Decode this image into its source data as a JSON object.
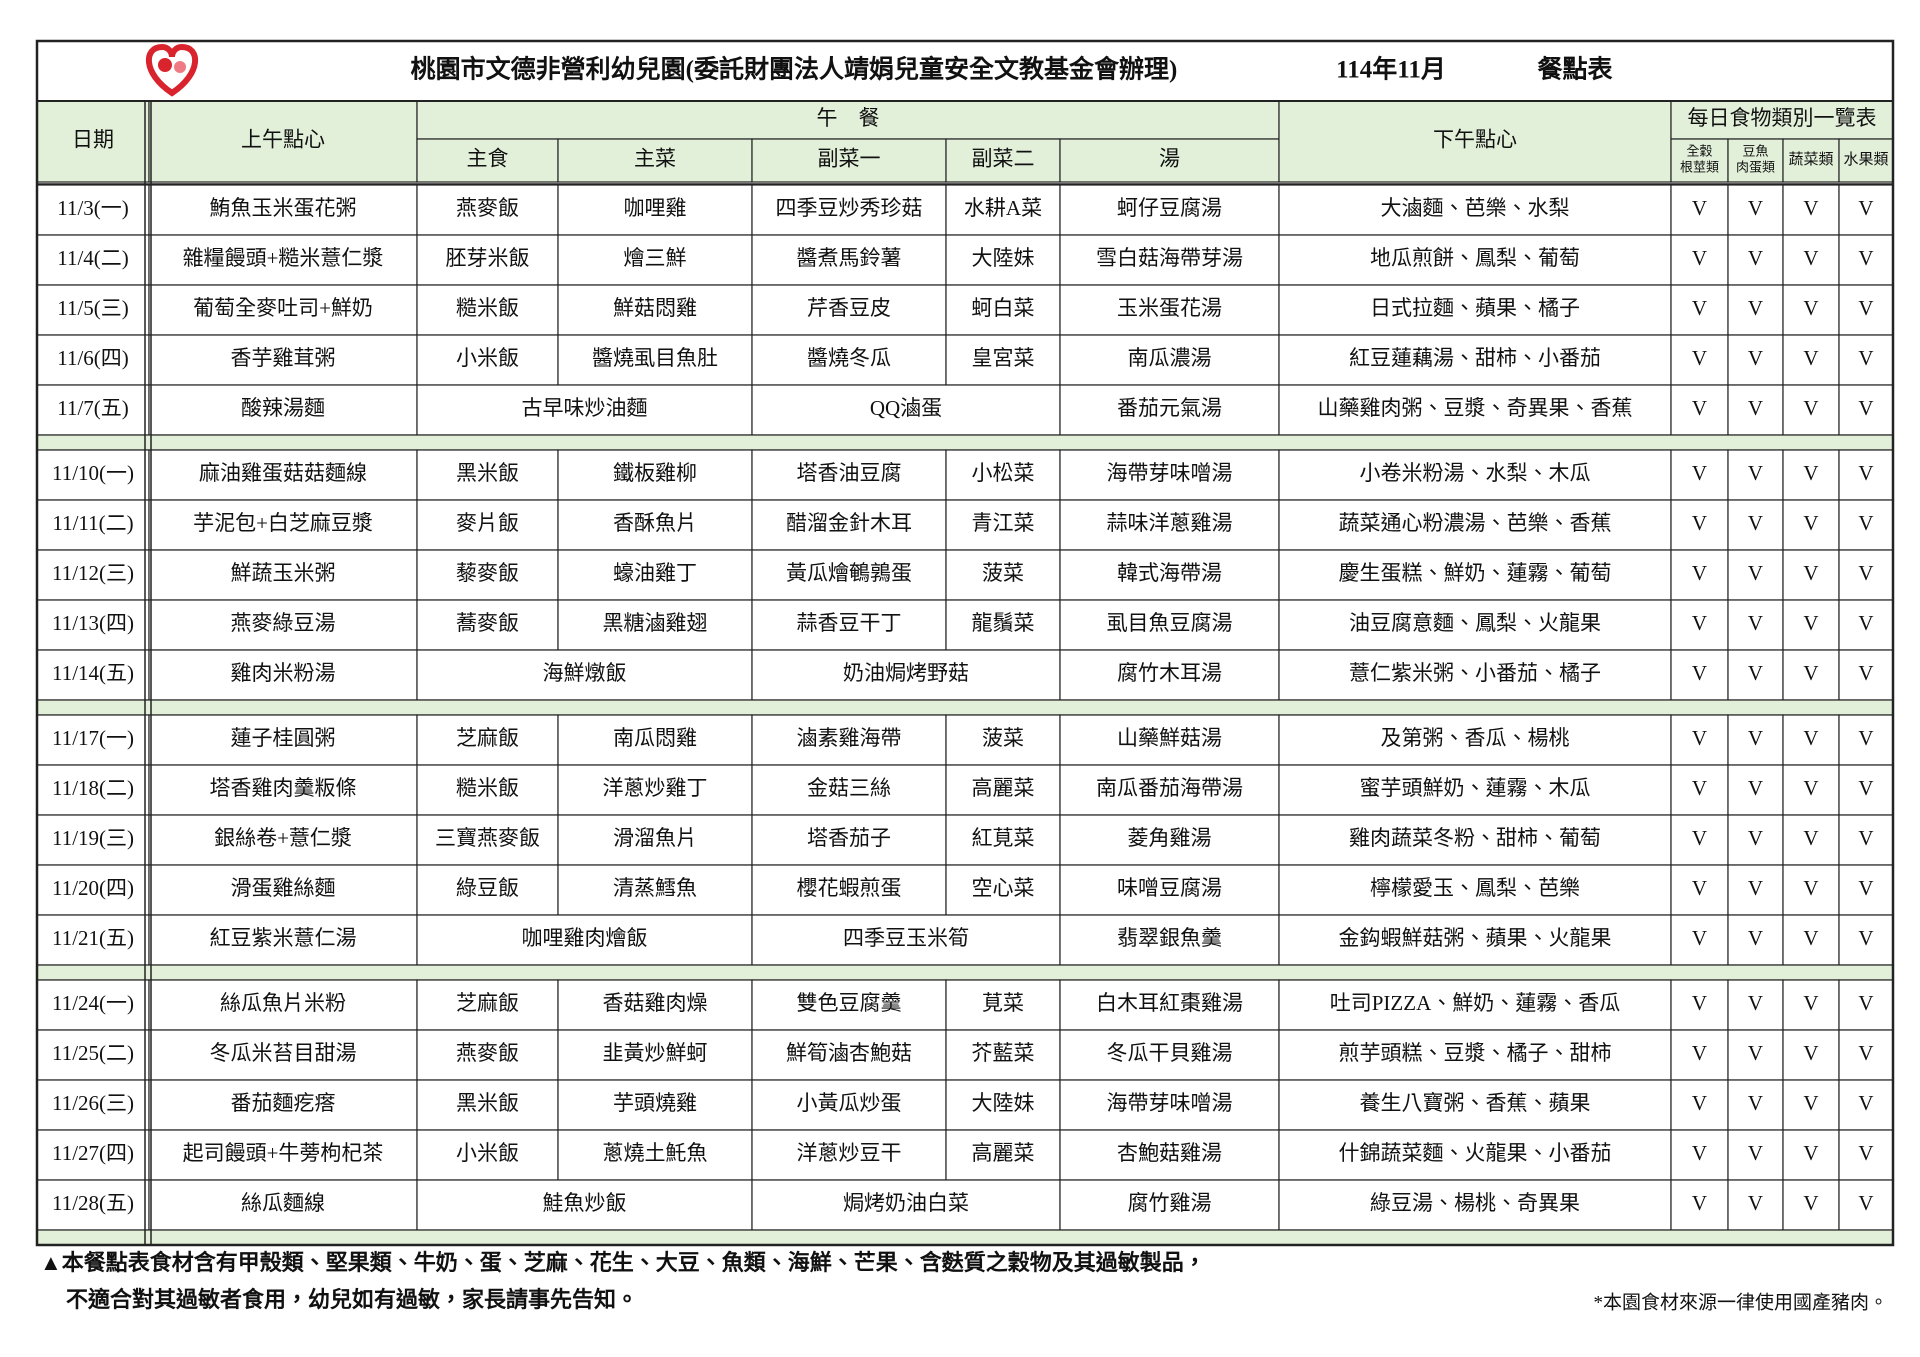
{
  "header": {
    "title": "桃園市文德非營利幼兒園(委託財團法人靖娟兒童安全文教基金會辦理)",
    "month": "114年11月",
    "label": "餐點表"
  },
  "table": {
    "columns": {
      "date": "日期",
      "am": "上午點心",
      "lunch": "午　餐",
      "lunch_sub": [
        "主食",
        "主菜",
        "副菜一",
        "副菜二",
        "湯"
      ],
      "pm": "下午點心",
      "categories_title": "每日食物類別一覽表",
      "categories": [
        [
          "全穀",
          "根莖類"
        ],
        [
          "豆魚",
          "肉蛋類"
        ],
        [
          "蔬菜類"
        ],
        [
          "水果類"
        ]
      ]
    },
    "weeks": [
      [
        {
          "date": "11/3(一)",
          "am": "鮪魚玉米蛋花粥",
          "lunch": [
            "燕麥飯",
            "咖哩雞",
            "四季豆炒秀珍菇",
            "水耕A菜",
            "蚵仔豆腐湯"
          ],
          "pm": "大滷麵、芭樂、水梨",
          "checks": [
            "V",
            "V",
            "V",
            "V"
          ]
        },
        {
          "date": "11/4(二)",
          "am": "雜糧饅頭+糙米薏仁漿",
          "lunch": [
            "胚芽米飯",
            "燴三鮮",
            "醬煮馬鈴薯",
            "大陸妹",
            "雪白菇海帶芽湯"
          ],
          "pm": "地瓜煎餅、鳳梨、葡萄",
          "checks": [
            "V",
            "V",
            "V",
            "V"
          ]
        },
        {
          "date": "11/5(三)",
          "am": "葡萄全麥吐司+鮮奶",
          "lunch": [
            "糙米飯",
            "鮮菇悶雞",
            "芹香豆皮",
            "蚵白菜",
            "玉米蛋花湯"
          ],
          "pm": "日式拉麵、蘋果、橘子",
          "checks": [
            "V",
            "V",
            "V",
            "V"
          ]
        },
        {
          "date": "11/6(四)",
          "am": "香芋雞茸粥",
          "lunch": [
            "小米飯",
            "醬燒虱目魚肚",
            "醬燒冬瓜",
            "皇宮菜",
            "南瓜濃湯"
          ],
          "pm": "紅豆蓮藕湯、甜柿、小番茄",
          "checks": [
            "V",
            "V",
            "V",
            "V"
          ]
        },
        {
          "date": "11/7(五)",
          "am": "酸辣湯麵",
          "lunch": [
            "古早味炒油麵",
            "QQ滷蛋",
            "番茄元氣湯"
          ],
          "pm": "山藥雞肉粥、豆漿、奇異果、香蕉",
          "checks": [
            "V",
            "V",
            "V",
            "V"
          ]
        }
      ],
      [
        {
          "date": "11/10(一)",
          "am": "麻油雞蛋菇菇麵線",
          "lunch": [
            "黑米飯",
            "鐵板雞柳",
            "塔香油豆腐",
            "小松菜",
            "海帶芽味噌湯"
          ],
          "pm": "小卷米粉湯、水梨、木瓜",
          "checks": [
            "V",
            "V",
            "V",
            "V"
          ]
        },
        {
          "date": "11/11(二)",
          "am": "芋泥包+白芝麻豆漿",
          "lunch": [
            "麥片飯",
            "香酥魚片",
            "醋溜金針木耳",
            "青江菜",
            "蒜味洋蔥雞湯"
          ],
          "pm": "蔬菜通心粉濃湯、芭樂、香蕉",
          "checks": [
            "V",
            "V",
            "V",
            "V"
          ]
        },
        {
          "date": "11/12(三)",
          "am": "鮮蔬玉米粥",
          "lunch": [
            "藜麥飯",
            "蠔油雞丁",
            "黃瓜燴鵪鶉蛋",
            "菠菜",
            "韓式海帶湯"
          ],
          "pm": "慶生蛋糕、鮮奶、蓮霧、葡萄",
          "checks": [
            "V",
            "V",
            "V",
            "V"
          ]
        },
        {
          "date": "11/13(四)",
          "am": "燕麥綠豆湯",
          "lunch": [
            "蕎麥飯",
            "黑糖滷雞翅",
            "蒜香豆干丁",
            "龍鬚菜",
            "虱目魚豆腐湯"
          ],
          "pm": "油豆腐意麵、鳳梨、火龍果",
          "checks": [
            "V",
            "V",
            "V",
            "V"
          ]
        },
        {
          "date": "11/14(五)",
          "am": "雞肉米粉湯",
          "lunch": [
            "海鮮燉飯",
            "奶油焗烤野菇",
            "腐竹木耳湯"
          ],
          "pm": "薏仁紫米粥、小番茄、橘子",
          "checks": [
            "V",
            "V",
            "V",
            "V"
          ]
        }
      ],
      [
        {
          "date": "11/17(一)",
          "am": "蓮子桂圓粥",
          "lunch": [
            "芝麻飯",
            "南瓜悶雞",
            "滷素雞海帶",
            "菠菜",
            "山藥鮮菇湯"
          ],
          "pm": "及第粥、香瓜、楊桃",
          "checks": [
            "V",
            "V",
            "V",
            "V"
          ]
        },
        {
          "date": "11/18(二)",
          "am": "塔香雞肉羹粄條",
          "lunch": [
            "糙米飯",
            "洋蔥炒雞丁",
            "金菇三絲",
            "高麗菜",
            "南瓜番茄海帶湯"
          ],
          "pm": "蜜芋頭鮮奶、蓮霧、木瓜",
          "checks": [
            "V",
            "V",
            "V",
            "V"
          ]
        },
        {
          "date": "11/19(三)",
          "am": "銀絲卷+薏仁漿",
          "lunch": [
            "三寶燕麥飯",
            "滑溜魚片",
            "塔香茄子",
            "紅莧菜",
            "菱角雞湯"
          ],
          "pm": "雞肉蔬菜冬粉、甜柿、葡萄",
          "checks": [
            "V",
            "V",
            "V",
            "V"
          ]
        },
        {
          "date": "11/20(四)",
          "am": "滑蛋雞絲麵",
          "lunch": [
            "綠豆飯",
            "清蒸鱈魚",
            "櫻花蝦煎蛋",
            "空心菜",
            "味噌豆腐湯"
          ],
          "pm": "檸檬愛玉、鳳梨、芭樂",
          "checks": [
            "V",
            "V",
            "V",
            "V"
          ]
        },
        {
          "date": "11/21(五)",
          "am": "紅豆紫米薏仁湯",
          "lunch": [
            "咖哩雞肉燴飯",
            "四季豆玉米筍",
            "翡翠銀魚羹"
          ],
          "pm": "金鈎蝦鮮菇粥、蘋果、火龍果",
          "checks": [
            "V",
            "V",
            "V",
            "V"
          ]
        }
      ],
      [
        {
          "date": "11/24(一)",
          "am": "絲瓜魚片米粉",
          "lunch": [
            "芝麻飯",
            "香菇雞肉燥",
            "雙色豆腐羹",
            "莧菜",
            "白木耳紅棗雞湯"
          ],
          "pm": "吐司PIZZA、鮮奶、蓮霧、香瓜",
          "checks": [
            "V",
            "V",
            "V",
            "V"
          ]
        },
        {
          "date": "11/25(二)",
          "am": "冬瓜米苔目甜湯",
          "lunch": [
            "燕麥飯",
            "韭黃炒鮮蚵",
            "鮮筍滷杏鮑菇",
            "芥藍菜",
            "冬瓜干貝雞湯"
          ],
          "pm": "煎芋頭糕、豆漿、橘子、甜柿",
          "checks": [
            "V",
            "V",
            "V",
            "V"
          ]
        },
        {
          "date": "11/26(三)",
          "am": "番茄麵疙瘩",
          "lunch": [
            "黑米飯",
            "芋頭燒雞",
            "小黃瓜炒蛋",
            "大陸妹",
            "海帶芽味噌湯"
          ],
          "pm": "養生八寶粥、香蕉、蘋果",
          "checks": [
            "V",
            "V",
            "V",
            "V"
          ]
        },
        {
          "date": "11/27(四)",
          "am": "起司饅頭+牛蒡枸杞茶",
          "lunch": [
            "小米飯",
            "蔥燒土魠魚",
            "洋蔥炒豆干",
            "高麗菜",
            "杏鮑菇雞湯"
          ],
          "pm": "什錦蔬菜麵、火龍果、小番茄",
          "checks": [
            "V",
            "V",
            "V",
            "V"
          ]
        },
        {
          "date": "11/28(五)",
          "am": "絲瓜麵線",
          "lunch": [
            "鮭魚炒飯",
            "焗烤奶油白菜",
            "腐竹雞湯"
          ],
          "pm": "綠豆湯、楊桃、奇異果",
          "checks": [
            "V",
            "V",
            "V",
            "V"
          ]
        }
      ]
    ]
  },
  "footer": {
    "allergy": [
      "▲本餐點表食材含有甲殼類、堅果類、牛奶、蛋、芝麻、花生、大豆、魚類、海鮮、芒果、含麩質之穀物及其過敏製品，",
      "不適合對其過敏者食用，幼兒如有過敏，家長請事先告知。"
    ],
    "note": "*本園食材來源一律使用國產豬肉。"
  }
}
